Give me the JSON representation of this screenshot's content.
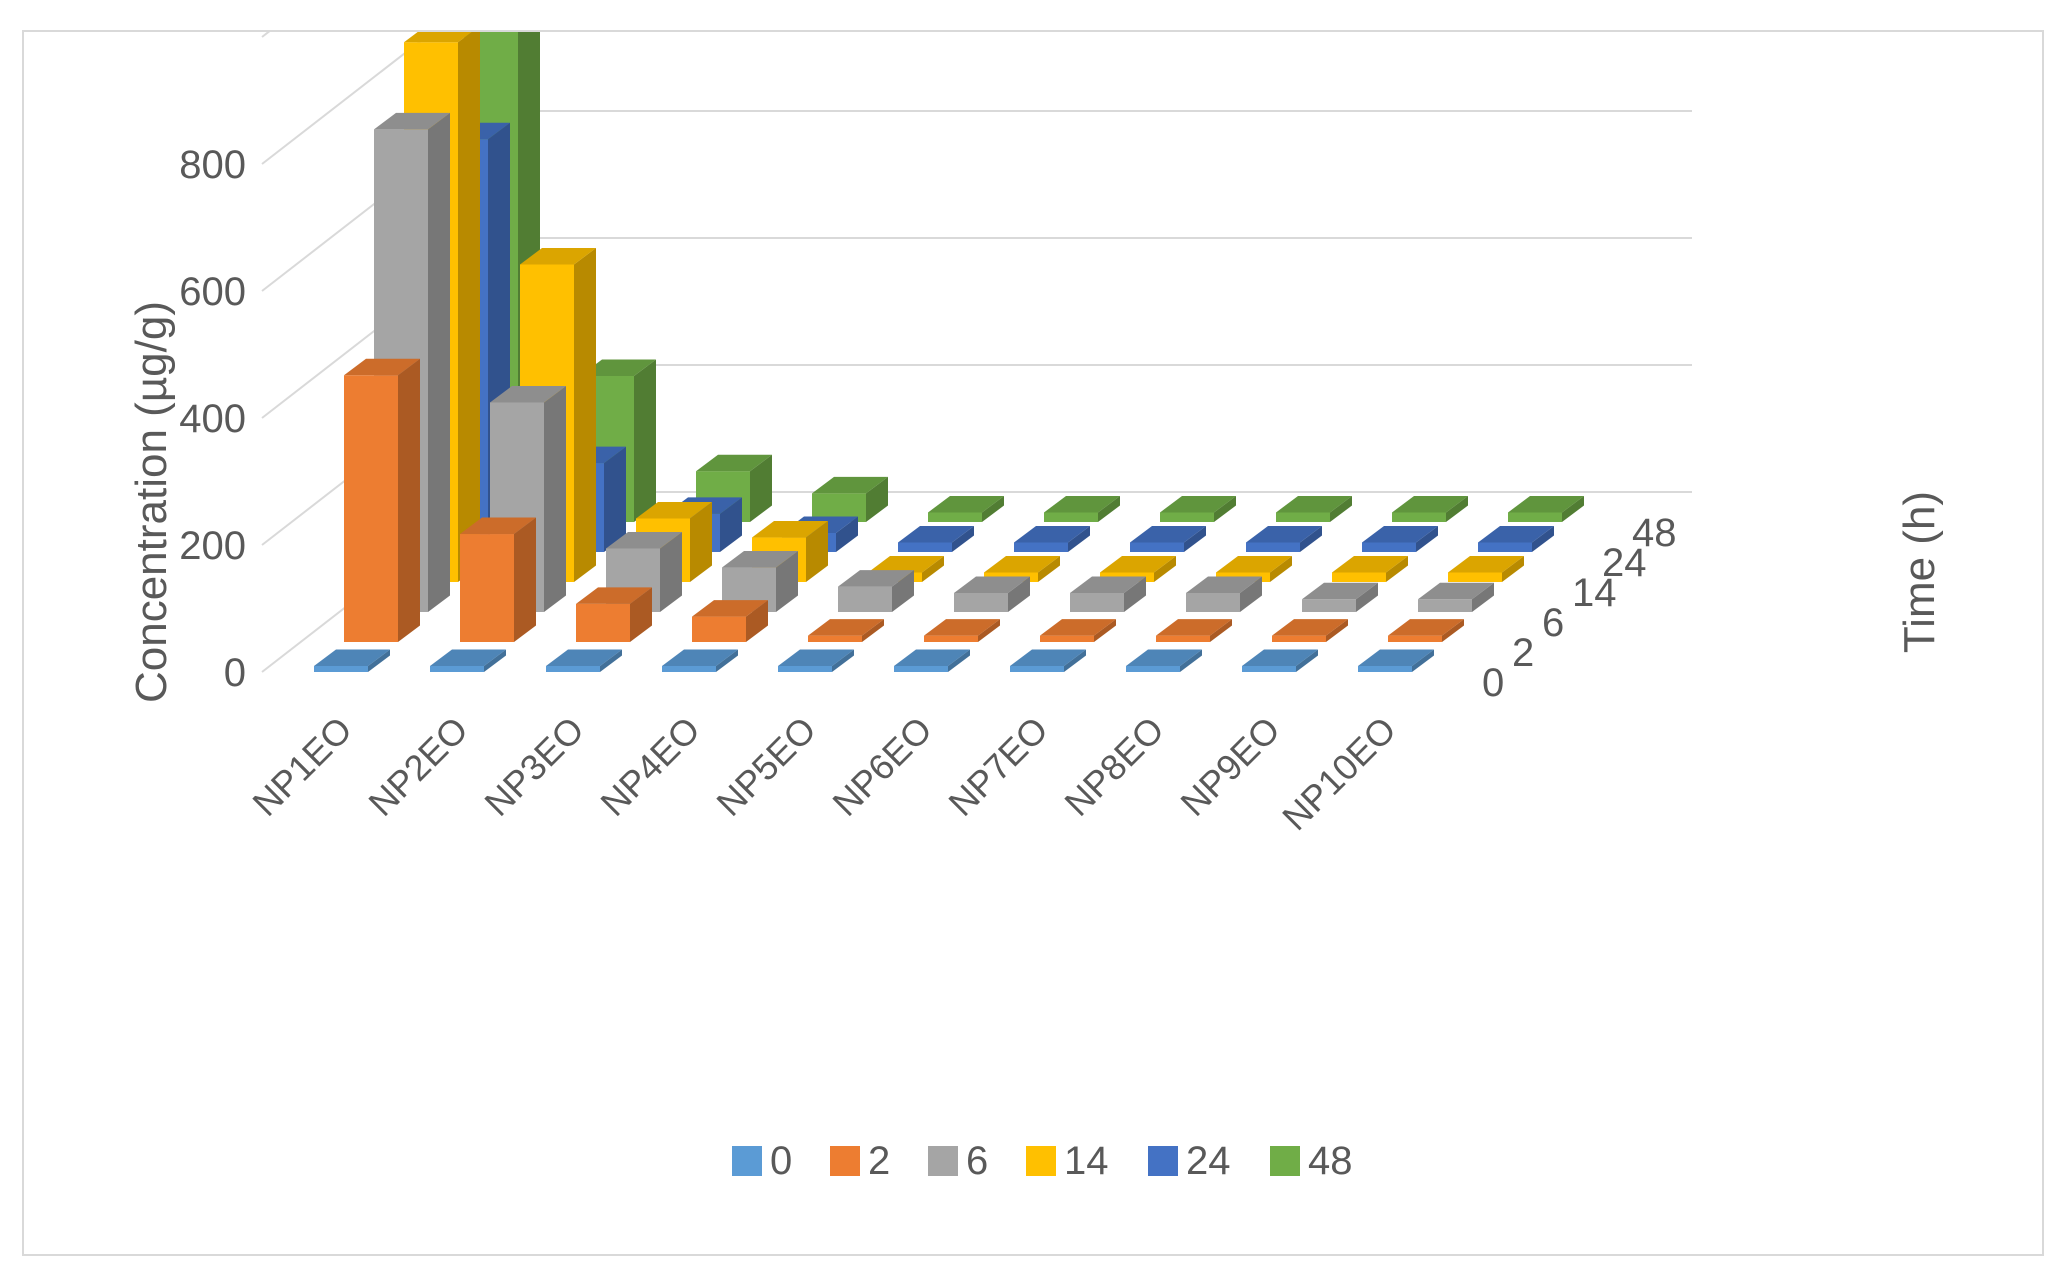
{
  "chart_data": {
    "type": "bar",
    "subtype": "3d-column",
    "title": "",
    "ylabel": "Concentration (µg/g)",
    "zlabel": "Time (h)",
    "ylim": [
      0,
      1000
    ],
    "yticks": [
      0,
      200,
      400,
      600,
      800
    ],
    "categories": [
      "NP1EO",
      "NP2EO",
      "NP3EO",
      "NP4EO",
      "NP5EO",
      "NP6EO",
      "NP7EO",
      "NP8EO",
      "NP9EO",
      "NP10EO"
    ],
    "series": [
      {
        "name": "0",
        "color": "#5b9bd5",
        "values": [
          0,
          0,
          0,
          0,
          0,
          0,
          0,
          0,
          0,
          0
        ]
      },
      {
        "name": "2",
        "color": "#ed7d31",
        "values": [
          420,
          170,
          60,
          40,
          10,
          10,
          10,
          10,
          10,
          10
        ]
      },
      {
        "name": "6",
        "color": "#a5a5a5",
        "values": [
          760,
          330,
          100,
          70,
          40,
          30,
          30,
          30,
          20,
          20
        ]
      },
      {
        "name": "14",
        "color": "#ffc000",
        "values": [
          850,
          500,
          100,
          70,
          15,
          15,
          15,
          15,
          15,
          15
        ]
      },
      {
        "name": "24",
        "color": "#4472c4",
        "values": [
          650,
          140,
          60,
          30,
          15,
          15,
          15,
          15,
          15,
          15
        ]
      },
      {
        "name": "48",
        "color": "#70ad47",
        "values": [
          1000,
          230,
          80,
          45,
          15,
          15,
          15,
          15,
          15,
          15
        ]
      }
    ],
    "grid": true,
    "legend": "bottom"
  }
}
